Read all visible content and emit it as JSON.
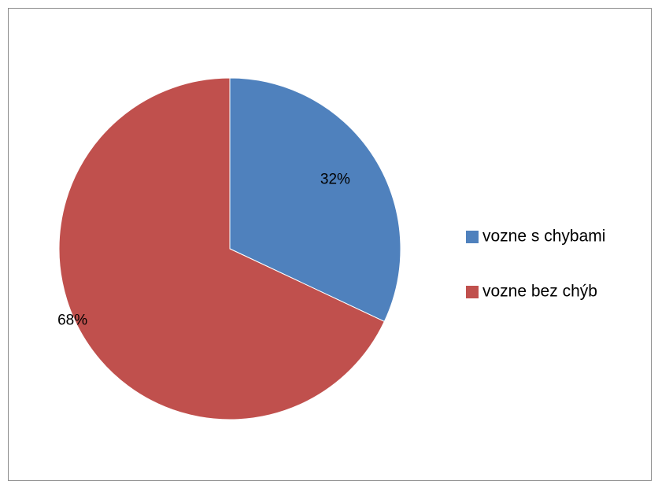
{
  "chart_data": {
    "type": "pie",
    "title": "",
    "slices": [
      {
        "label": "vozne s chybami",
        "value": 32,
        "value_label": "32%",
        "color": "#4f81bd"
      },
      {
        "label": "vozne bez chýb",
        "value": 68,
        "value_label": "68%",
        "color": "#c0504d"
      }
    ],
    "legend_position": "right",
    "start_angle_deg": 0,
    "direction": "clockwise"
  }
}
